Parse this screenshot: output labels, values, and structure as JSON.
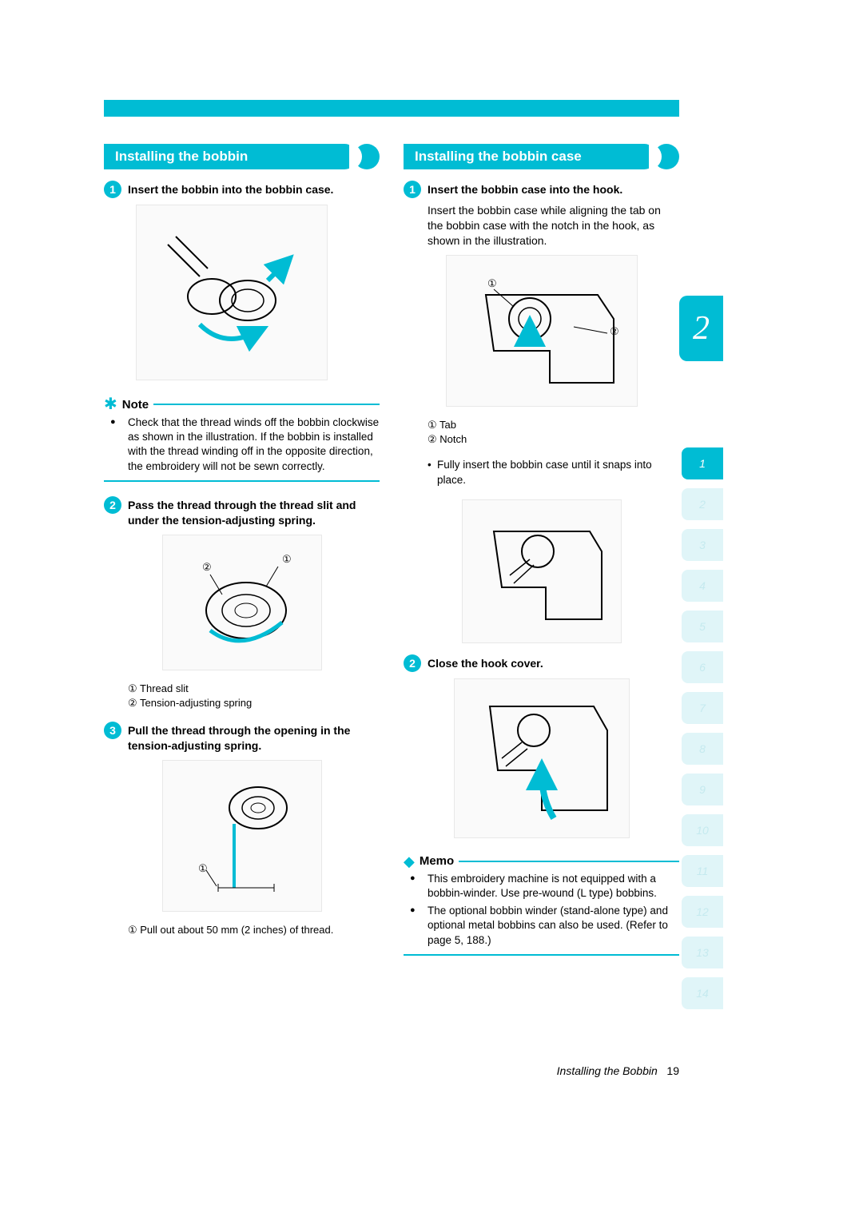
{
  "colors": {
    "accent": "#00bcd4",
    "inactive_tab_bg": "#e0f5f8",
    "inactive_tab_fg": "#c5eaef",
    "text": "#000000",
    "background": "#ffffff"
  },
  "chapter_tab": "2",
  "side_tabs": [
    "1",
    "2",
    "3",
    "4",
    "5",
    "6",
    "7",
    "8",
    "9",
    "10",
    "11",
    "12",
    "13",
    "14"
  ],
  "active_side_tab_index": 0,
  "left": {
    "header": "Installing the bobbin",
    "step1": {
      "num": "1",
      "title": "Insert the bobbin into the bobbin case."
    },
    "note": {
      "label": "Note",
      "text": "Check that the thread winds off the bobbin clockwise as shown in the illustration. If the bobbin is installed with the thread winding off in the opposite direction, the embroidery will not be sewn correctly."
    },
    "step2": {
      "num": "2",
      "title": "Pass the thread through the thread slit and under the tension-adjusting spring.",
      "callout1": "① Thread slit",
      "callout2": "② Tension-adjusting spring"
    },
    "step3": {
      "num": "3",
      "title": "Pull the thread through the opening in the tension-adjusting spring.",
      "callout1": "① Pull out about 50 mm (2 inches) of thread."
    }
  },
  "right": {
    "header": "Installing the bobbin case",
    "step1": {
      "num": "1",
      "title": "Insert the bobbin case into the hook.",
      "body": "Insert the bobbin case while aligning the tab on the bobbin case with the notch in the hook, as shown in the illustration.",
      "callout1": "① Tab",
      "callout2": "② Notch",
      "sub": "Fully insert the bobbin case until it snaps into place."
    },
    "step2": {
      "num": "2",
      "title": "Close the hook cover."
    },
    "memo": {
      "label": "Memo",
      "bullet1": "This embroidery machine is not equipped with a bobbin-winder. Use pre-wound (L type) bobbins.",
      "bullet2": "The optional bobbin winder (stand-alone type) and optional metal bobbins can also be used. (Refer to page 5, 188.)"
    }
  },
  "footer": {
    "section": "Installing the Bobbin",
    "page": "19"
  }
}
